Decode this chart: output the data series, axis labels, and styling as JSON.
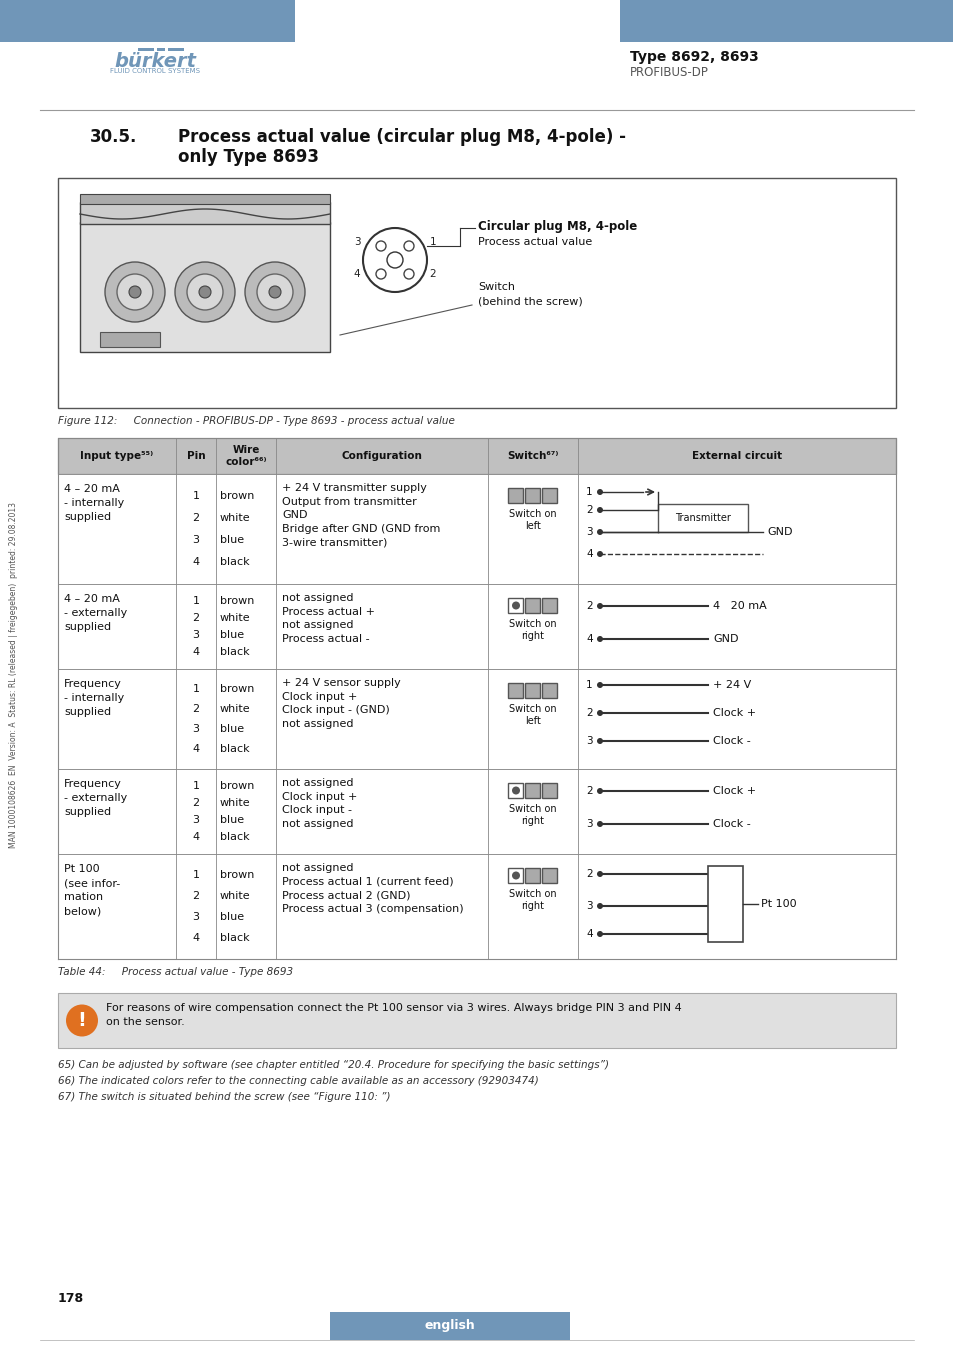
{
  "header_blue": "#7096b8",
  "page_bg": "#ffffff",
  "header_type": "Type 8692, 8693",
  "header_sub": "PROFIBUS-DP",
  "figure_caption": "Figure 112:     Connection - PROFIBUS-DP - Type 8693 - process actual value",
  "table_caption": "Table 44:     Process actual value - Type 8693",
  "note_text": "For reasons of wire compensation connect the Pt 100 sensor via 3 wires. Always bridge PIN 3 and PIN 4\non the sensor.",
  "footnotes": [
    "65) Can be adjusted by software (see chapter entitled “20.4. Procedure for specifying the basic settings”)",
    "66) The indicated colors refer to the connecting cable available as an accessory (92903474)",
    "67) The switch is situated behind the screw (see “Figure 110: ”)"
  ],
  "page_number": "178",
  "sidebar_text": "MAN 1000108626  EN  Version: A  Status: RL (released | freigegeben)  printed: 29.08.2013",
  "table_header_bg": "#c0c0c0",
  "note_bg": "#e0e0e0",
  "english_bar_color": "#7096b8"
}
